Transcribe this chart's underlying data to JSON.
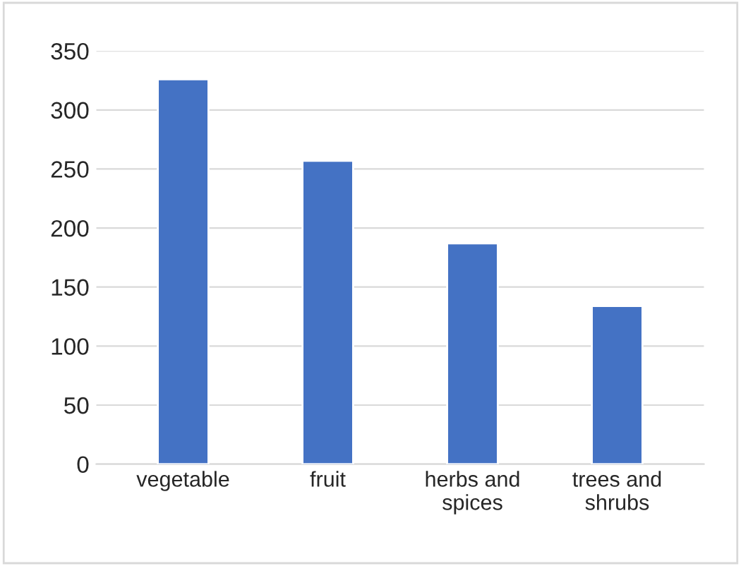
{
  "chart_data": {
    "type": "bar",
    "categories": [
      "vegetable",
      "fruit",
      "herbs and spices",
      "trees and shrubs"
    ],
    "values": [
      326,
      257,
      187,
      134
    ],
    "color": "#4472c4",
    "ylim": [
      0,
      350
    ],
    "yticks": [
      0,
      50,
      100,
      150,
      200,
      250,
      300,
      350
    ],
    "grid": "y",
    "legend": false
  }
}
